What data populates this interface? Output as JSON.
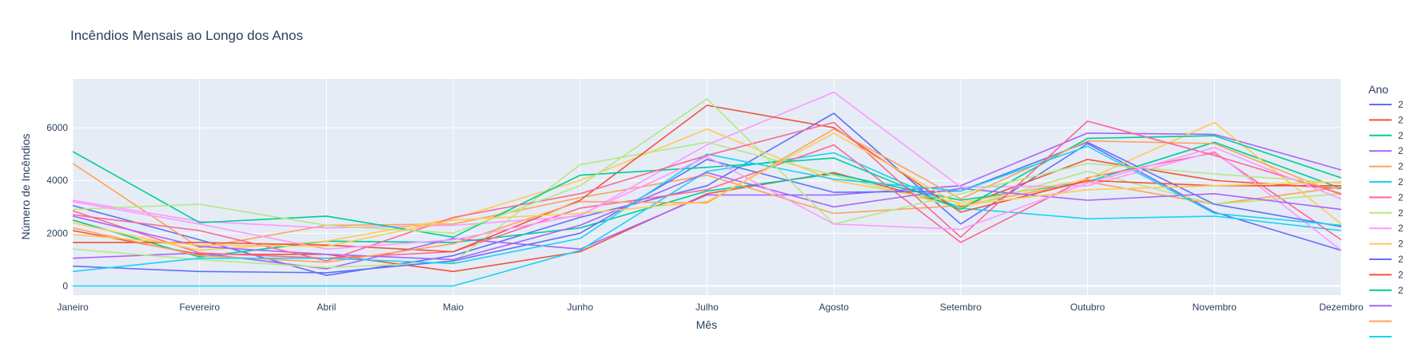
{
  "chart_data": {
    "type": "line",
    "title": "Incêndios Mensais ao Longo dos Anos",
    "xlabel": "Mês",
    "ylabel": "Número de Incêndios",
    "categories": [
      "Janeiro",
      "Fevereiro",
      "Abril",
      "Maio",
      "Junho",
      "Julho",
      "Agosto",
      "Setembro",
      "Outubro",
      "Novembro",
      "Dezembro"
    ],
    "ylim": [
      -350,
      7850
    ],
    "yticks": [
      0,
      2000,
      4000,
      6000
    ],
    "grid": true,
    "legend_title": "Ano",
    "legend_placement": "right",
    "series": [
      {
        "name": "2",
        "color": "#636efa",
        "values": [
          3050,
          1750,
          400,
          1150,
          2600,
          3800,
          6550,
          2350,
          5400,
          2800,
          1350
        ]
      },
      {
        "name": "2",
        "color": "#ef553b",
        "values": [
          2100,
          1200,
          1200,
          550,
          1300,
          3500,
          4300,
          3000,
          4800,
          4000,
          3700
        ]
      },
      {
        "name": "2",
        "color": "#00cc96",
        "values": [
          2500,
          1100,
          1700,
          1650,
          2200,
          3600,
          4250,
          3250,
          3950,
          5450,
          3700
        ]
      },
      {
        "name": "2",
        "color": "#ab63fa",
        "values": [
          1050,
          1250,
          650,
          1800,
          1400,
          3450,
          3450,
          3800,
          5800,
          5750,
          4400
        ]
      },
      {
        "name": "2",
        "color": "#ffa15a",
        "values": [
          4650,
          1450,
          2300,
          2350,
          3350,
          4200,
          2750,
          3050,
          3950,
          3100,
          3750
        ]
      },
      {
        "name": "2",
        "color": "#19d3f3",
        "values": [
          0,
          0,
          0,
          0,
          1350,
          4350,
          5050,
          2950,
          2550,
          2650,
          2100
        ]
      },
      {
        "name": "2",
        "color": "#ff6692",
        "values": [
          2850,
          1250,
          1050,
          1300,
          2950,
          3650,
          5350,
          1650,
          4100,
          5050,
          1750
        ]
      },
      {
        "name": "2",
        "color": "#b6e880",
        "values": [
          1400,
          1000,
          700,
          900,
          4600,
          5450,
          4200,
          2950,
          4350,
          3100,
          3500
        ]
      },
      {
        "name": "2",
        "color": "#ff97ff",
        "values": [
          3250,
          2450,
          2200,
          2300,
          2650,
          5350,
          7350,
          3750,
          3800,
          5100,
          1350
        ]
      },
      {
        "name": "2",
        "color": "#fecb52",
        "values": [
          2400,
          1350,
          1700,
          2550,
          4000,
          5950,
          4000,
          3150,
          4050,
          6200,
          2350
        ]
      },
      {
        "name": "2",
        "color": "#636efa",
        "values": [
          750,
          550,
          500,
          950,
          2000,
          4800,
          3550,
          3600,
          5450,
          3100,
          2250
        ]
      },
      {
        "name": "2",
        "color": "#ef553b",
        "values": [
          1650,
          1650,
          1550,
          1300,
          3250,
          6850,
          6000,
          2800,
          4000,
          3800,
          3800
        ]
      },
      {
        "name": "2",
        "color": "#00cc96",
        "values": [
          5100,
          2400,
          2650,
          1850,
          4200,
          4500,
          4850,
          2900,
          5600,
          5700,
          4100
        ]
      },
      {
        "name": "",
        "color": "#ab63fa",
        "values": [
          2650,
          1500,
          1200,
          1000,
          2300,
          4300,
          3000,
          3700,
          3250,
          3500,
          2900
        ]
      },
      {
        "name": "",
        "color": "#ffa15a",
        "values": [
          2200,
          1150,
          900,
          1600,
          3200,
          3150,
          5950,
          3300,
          5500,
          5400,
          3450
        ]
      },
      {
        "name": "",
        "color": "#19d3f3",
        "values": [
          550,
          1050,
          1050,
          850,
          1800,
          5000,
          4050,
          3600,
          5300,
          2750,
          2300
        ]
      },
      {
        "name": "",
        "color": "#ff6692",
        "values": [
          2700,
          2100,
          950,
          2600,
          3500,
          4950,
          6200,
          1850,
          6250,
          4950,
          3500
        ]
      },
      {
        "name": "",
        "color": "#b6e880",
        "values": [
          2900,
          3100,
          2300,
          2000,
          3800,
          7100,
          2350,
          3500,
          4650,
          4250,
          3900
        ]
      },
      {
        "name": "",
        "color": "#ff97ff",
        "values": [
          3200,
          2350,
          1400,
          1750,
          2700,
          4900,
          2350,
          2150,
          3900,
          5250,
          3300
        ]
      },
      {
        "name": "",
        "color": "#fecb52",
        "values": [
          1950,
          1550,
          1500,
          2500,
          2750,
          3200,
          5800,
          3050,
          3650,
          3800,
          3950
        ]
      }
    ]
  }
}
